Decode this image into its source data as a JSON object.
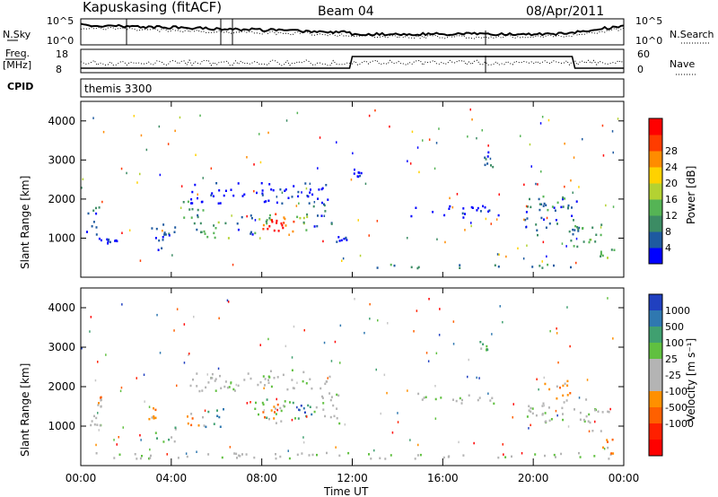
{
  "header": {
    "station": "Kapuskasing (fitACF)",
    "beam": "Beam 04",
    "date": "08/Apr/2011"
  },
  "summary_panels": {
    "nsky_label": "N.Sky",
    "nsky_ticks": [
      "10^5",
      "10^0"
    ],
    "nsearch_label": "N.Search",
    "nsearch_ticks": [
      "10^5",
      "10^0"
    ],
    "freq_label_1": "Freq.",
    "freq_label_2": "[MHz]",
    "freq_ticks": [
      "18",
      "8"
    ],
    "nave_label": "Nave",
    "nave_ticks": [
      "60",
      "0"
    ],
    "cpid_label": "CPID",
    "cpid_value": "themis 3300"
  },
  "colors": {
    "power_scale": [
      "#0000ff",
      "#1e5aa0",
      "#3c8c64",
      "#55b455",
      "#b4d232",
      "#ffd200",
      "#ff8c00",
      "#ff3c00",
      "#ff0000"
    ],
    "velocity_scale": [
      "#2040c0",
      "#2f78b0",
      "#40a070",
      "#60c040",
      "#c8c8c8",
      "#c8c8c8",
      "#ff9000",
      "#ff6000",
      "#ff2000",
      "#ff0000"
    ],
    "ground_scatter": "#b4b4b4"
  },
  "chart_data": [
    {
      "type": "heatmap",
      "name": "power",
      "ylabel": "Slant Range [km]",
      "ylim": [
        0,
        4500
      ],
      "yticks": [
        "1000",
        "2000",
        "3000",
        "4000"
      ],
      "colorbar_label": "Power [dB]",
      "colorbar_ticks": [
        "4",
        "8",
        "12",
        "16",
        "20",
        "24",
        "28"
      ],
      "colorbar_range": [
        0,
        32
      ],
      "xlim": [
        0,
        24
      ],
      "patches": [
        {
          "t0": 0.2,
          "t1": 0.9,
          "r0": 900,
          "r1": 1900,
          "level": 1
        },
        {
          "t0": 1.1,
          "t1": 1.7,
          "r0": 850,
          "r1": 1000,
          "level": 0
        },
        {
          "t0": 3.0,
          "t1": 3.6,
          "r0": 650,
          "r1": 1400,
          "level": 1
        },
        {
          "t0": 3.6,
          "t1": 4.2,
          "r0": 1100,
          "r1": 1400,
          "level": 1
        },
        {
          "t0": 4.5,
          "t1": 5.4,
          "r0": 1000,
          "r1": 2000,
          "level": 2
        },
        {
          "t0": 5.4,
          "t1": 6.6,
          "r0": 1000,
          "r1": 1500,
          "level": 3
        },
        {
          "t0": 4.8,
          "t1": 11.0,
          "r0": 1900,
          "r1": 2450,
          "level": 0
        },
        {
          "t0": 6.8,
          "t1": 7.6,
          "r0": 1100,
          "r1": 1700,
          "level": 1
        },
        {
          "t0": 7.6,
          "t1": 8.4,
          "r0": 1100,
          "r1": 1700,
          "level": 3
        },
        {
          "t0": 8.0,
          "t1": 9.4,
          "r0": 1150,
          "r1": 1650,
          "level": 7
        },
        {
          "t0": 8.4,
          "t1": 9.0,
          "r0": 1200,
          "r1": 1500,
          "level": 8
        },
        {
          "t0": 9.4,
          "t1": 10.2,
          "r0": 1200,
          "r1": 1700,
          "level": 3
        },
        {
          "t0": 10.2,
          "t1": 11.2,
          "r0": 1300,
          "r1": 1900,
          "level": 1
        },
        {
          "t0": 11.2,
          "t1": 11.8,
          "r0": 850,
          "r1": 1200,
          "level": 0
        },
        {
          "t0": 12.0,
          "t1": 12.4,
          "r0": 2600,
          "r1": 2800,
          "level": 0
        },
        {
          "t0": 14.5,
          "t1": 18.5,
          "r0": 1550,
          "r1": 1850,
          "level": 0
        },
        {
          "t0": 17.6,
          "t1": 18.2,
          "r0": 2800,
          "r1": 3300,
          "level": 1
        },
        {
          "t0": 19.6,
          "t1": 22.0,
          "r0": 1100,
          "r1": 2100,
          "level": 1
        },
        {
          "t0": 20.4,
          "t1": 21.4,
          "r0": 1700,
          "r1": 2100,
          "level": 2
        },
        {
          "t0": 21.6,
          "t1": 23.0,
          "r0": 800,
          "r1": 1500,
          "level": 3
        },
        {
          "t0": 22.8,
          "t1": 23.6,
          "r0": 500,
          "r1": 800,
          "level": 3
        },
        {
          "t0": 12.0,
          "t1": 21.8,
          "r0": 250,
          "r1": 350,
          "level": 2
        }
      ]
    },
    {
      "type": "heatmap",
      "name": "velocity",
      "ylabel": "Slant Range [km]",
      "ylim": [
        0,
        4500
      ],
      "yticks": [
        "1000",
        "2000",
        "3000",
        "4000"
      ],
      "xlabel": "Time UT",
      "xticks": [
        "00:00",
        "04:00",
        "08:00",
        "12:00",
        "16:00",
        "20:00",
        "00:00"
      ],
      "xlim": [
        0,
        24
      ],
      "colorbar_label": "Velocity [m s⁻¹]",
      "colorbar_ticks": [
        "1000",
        "500",
        "100",
        "25",
        "-25",
        "-100",
        "-500",
        "-1000"
      ],
      "patches": [
        {
          "t0": 0.2,
          "t1": 0.9,
          "r0": 950,
          "r1": 1300,
          "level": 4
        },
        {
          "t0": 0.7,
          "t1": 0.9,
          "r0": 1500,
          "r1": 1900,
          "level": 6
        },
        {
          "t0": 2.9,
          "t1": 3.5,
          "r0": 1200,
          "r1": 1500,
          "level": 6
        },
        {
          "t0": 3.2,
          "t1": 4.2,
          "r0": 600,
          "r1": 1000,
          "level": 3
        },
        {
          "t0": 4.6,
          "t1": 5.6,
          "r0": 1000,
          "r1": 1400,
          "level": 6
        },
        {
          "t0": 5.4,
          "t1": 6.4,
          "r0": 1000,
          "r1": 1500,
          "level": 1
        },
        {
          "t0": 4.8,
          "t1": 11.0,
          "r0": 1900,
          "r1": 2450,
          "level": 4
        },
        {
          "t0": 7.6,
          "t1": 9.6,
          "r0": 1100,
          "r1": 1700,
          "level": 3
        },
        {
          "t0": 8.0,
          "t1": 8.8,
          "r0": 1200,
          "r1": 1600,
          "level": 6
        },
        {
          "t0": 9.6,
          "t1": 10.2,
          "r0": 1200,
          "r1": 1600,
          "level": 1
        },
        {
          "t0": 10.2,
          "t1": 11.4,
          "r0": 1000,
          "r1": 1900,
          "level": 4
        },
        {
          "t0": 14.5,
          "t1": 18.5,
          "r0": 1600,
          "r1": 1850,
          "level": 4
        },
        {
          "t0": 17.6,
          "t1": 18.2,
          "r0": 2800,
          "r1": 3200,
          "level": 3
        },
        {
          "t0": 19.6,
          "t1": 22.5,
          "r0": 1100,
          "r1": 1700,
          "level": 4
        },
        {
          "t0": 20.4,
          "t1": 21.8,
          "r0": 1700,
          "r1": 2200,
          "level": 6
        },
        {
          "t0": 22.0,
          "t1": 23.4,
          "r0": 900,
          "r1": 1500,
          "level": 4
        },
        {
          "t0": 23.0,
          "t1": 23.5,
          "r0": 300,
          "r1": 700,
          "level": 6
        },
        {
          "t0": 0.5,
          "t1": 23.5,
          "r0": 200,
          "r1": 350,
          "level": 4
        }
      ]
    }
  ]
}
